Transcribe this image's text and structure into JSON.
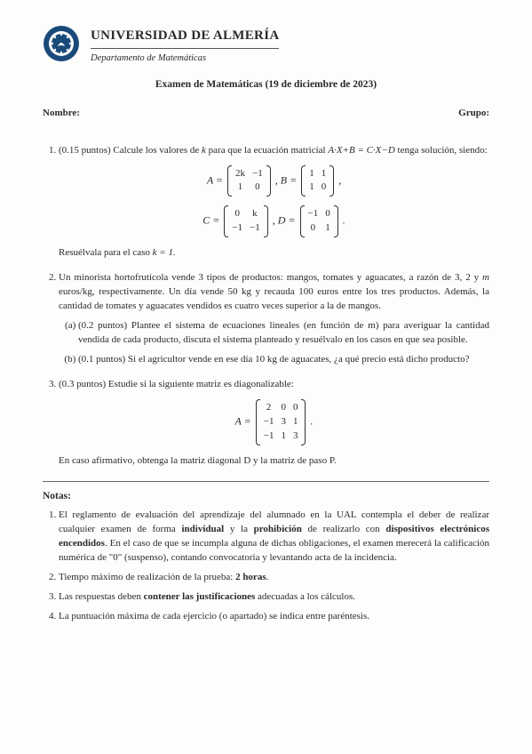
{
  "header": {
    "university": "UNIVERSIDAD DE ALMERÍA",
    "department": "Departamento de Matemáticas",
    "exam_title": "Examen de Matemáticas (19 de diciembre de 2023)",
    "name_label": "Nombre:",
    "group_label": "Grupo:"
  },
  "problems": [
    {
      "points": "(0.15 puntos)",
      "text_a": "Calcule los valores de ",
      "var1": "k",
      "text_b": " para que la ecuación matricial ",
      "eq": "A·X+B = C·X−D",
      "text_c": " tenga solución, siendo:",
      "matrices_line1_prefix": "A = ",
      "matA": [
        [
          "2k",
          "−1"
        ],
        [
          "1",
          "0"
        ]
      ],
      "sep1": ",  B = ",
      "matB": [
        [
          "1",
          "1"
        ],
        [
          "1",
          "0"
        ]
      ],
      "suf1": ",",
      "matrices_line2_prefix": "C = ",
      "matC": [
        [
          "0",
          "k"
        ],
        [
          "−1",
          "−1"
        ]
      ],
      "sep2": ",  D = ",
      "matD": [
        [
          "−1",
          "0"
        ],
        [
          "0",
          "1"
        ]
      ],
      "suf2": ".",
      "resolve": "Resuélvala para el caso ",
      "resolve_var": "k = 1."
    },
    {
      "text": "Un minorista hortofrutícola vende 3 tipos de productos: mangos, tomates y aguacates, a razón de 3, 2 y ",
      "var_m": "m",
      "text2": " euros/kg, respectivamente. Un día vende 50 kg y recauda 100 euros entre los tres productos. Además, la cantidad de tomates y aguacates vendidos es cuatro veces superior a la de mangos.",
      "sub": [
        {
          "points": "(0.2 puntos)",
          "text": "Plantee el sistema de ecuaciones lineales (en función de m) para averiguar la cantidad vendida de cada producto, discuta el sistema planteado y resuélvalo en los casos en que sea posible."
        },
        {
          "points": "(0.1 puntos)",
          "text": "Si el agricultor vende en ese día 10 kg de aguacates, ¿a qué precio está dicho producto?"
        }
      ]
    },
    {
      "points": "(0.3 puntos)",
      "text": "Estudie si la siguiente matriz es diagonalizable:",
      "matA_prefix": "A = ",
      "matA": [
        [
          "2",
          "0",
          "0"
        ],
        [
          "−1",
          "3",
          "1"
        ],
        [
          "−1",
          "1",
          "3"
        ]
      ],
      "suffix": ".",
      "conclusion": "En caso afirmativo, obtenga la matriz diagonal D y la matriz de paso P."
    }
  ],
  "notas_title": "Notas:",
  "notas": [
    {
      "parts": [
        {
          "t": "El reglamento de evaluación del aprendizaje del alumnado en la UAL contempla el deber de realizar cualquier examen de forma "
        },
        {
          "b": "individual"
        },
        {
          "t": " y la "
        },
        {
          "b": "prohibición"
        },
        {
          "t": " de realizarlo con "
        },
        {
          "b": "dispositivos electrónicos encendidos"
        },
        {
          "t": ". En el caso de que se incumpla alguna de dichas obligaciones, el examen merecerá la calificación numérica de \"0\" (suspenso), contando convocatoria y levantando acta de la incidencia."
        }
      ]
    },
    {
      "parts": [
        {
          "t": "Tiempo máximo de realización de la prueba: "
        },
        {
          "b": "2 horas"
        },
        {
          "t": "."
        }
      ]
    },
    {
      "parts": [
        {
          "t": "Las respuestas deben "
        },
        {
          "b": "contener las justificaciones"
        },
        {
          "t": " adecuadas a los cálculos."
        }
      ]
    },
    {
      "parts": [
        {
          "t": "La puntuación máxima de cada ejercicio (o apartado) se indica entre paréntesis."
        }
      ]
    }
  ],
  "colors": {
    "page_bg": "#fdfdfc",
    "text": "#2a2a2a",
    "seal_outer": "#1a4a7a",
    "seal_inner": "#ffffff"
  }
}
